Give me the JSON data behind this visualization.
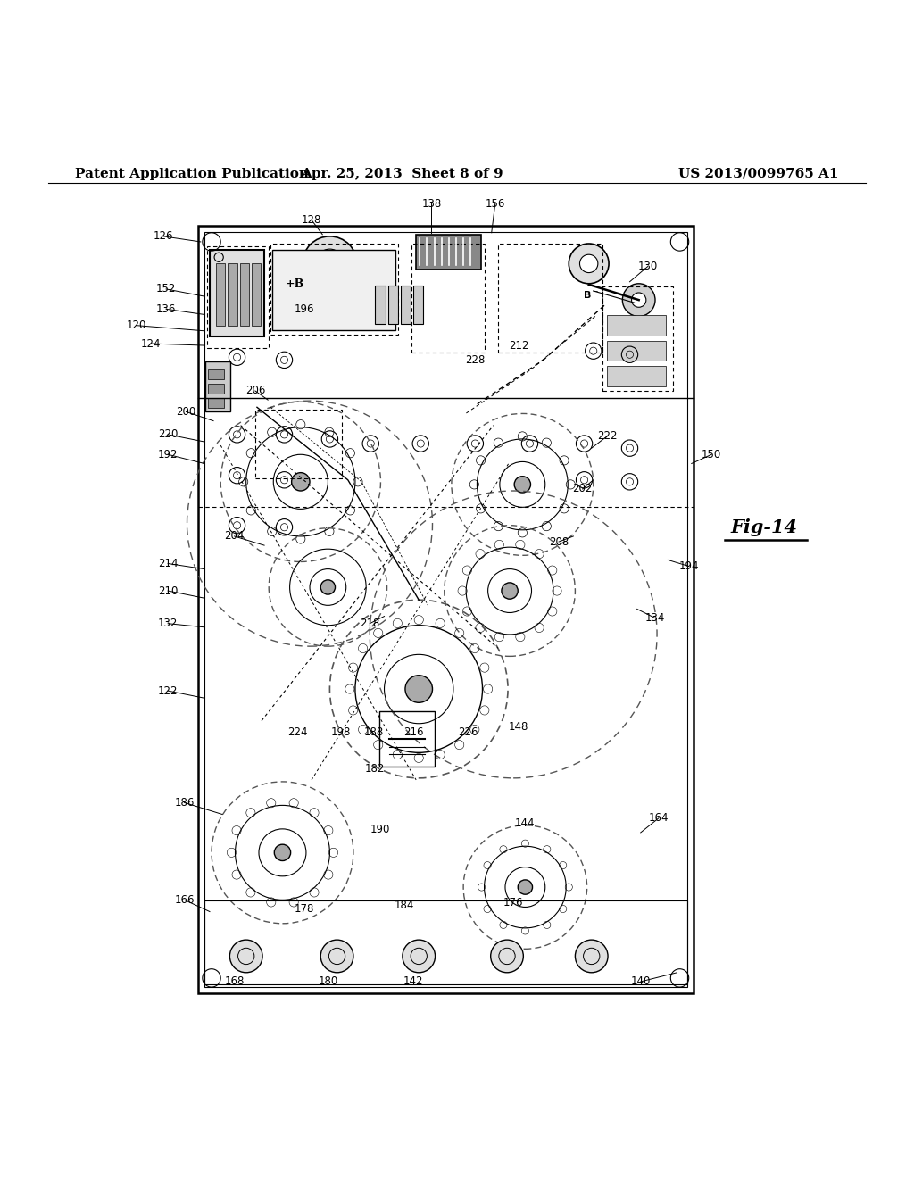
{
  "bg_color": "#ffffff",
  "line_color": "#000000",
  "dashed_color": "#555555",
  "header_left": "Patent Application Publication",
  "header_mid": "Apr. 25, 2013  Sheet 8 of 9",
  "header_right": "US 2013/0099765 A1",
  "fig_label": "Fig-14",
  "title_fontsize": 11,
  "label_fontsize": 8.5
}
